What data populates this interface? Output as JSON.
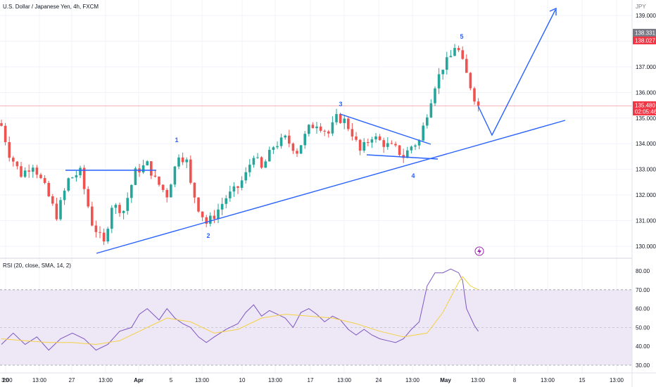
{
  "header": {
    "symbol_title": "U.S. Dollar / Japanese Yen, 4h, FXCM"
  },
  "price_axis": {
    "currency": "JPY",
    "ticks": [
      "139.000",
      "138.000",
      "137.000",
      "136.000",
      "135.000",
      "134.000",
      "133.000",
      "132.000",
      "131.000",
      "130.000"
    ],
    "badges": {
      "high": "138.331",
      "high_marker": "138.027",
      "last": "135.480",
      "countdown": "02:05:46"
    }
  },
  "time_axis": {
    "ticks": [
      "3:00",
      "20",
      "13:00",
      "27",
      "13:00",
      "Apr",
      "5",
      "13:00",
      "10",
      "13:00",
      "17",
      "13:00",
      "24",
      "13:00",
      "May",
      "13:00",
      "8",
      "13:00",
      "15",
      "13:00"
    ]
  },
  "wave_labels": [
    "1",
    "2",
    "3",
    "4",
    "5"
  ],
  "rsi": {
    "title": "RSI (20, close, SMA, 14, 2)",
    "ticks": [
      "80.00",
      "70.00",
      "60.00",
      "50.00",
      "40.00",
      "30.00"
    ]
  },
  "colors": {
    "up": "#26a69a",
    "down": "#ef5350",
    "drawing": "#2962ff",
    "rsi_line": "#7e57c2",
    "rsi_ma": "#f5d142",
    "rsi_band": "#ede7f6",
    "last_price": "#f23645"
  },
  "chart_data": [
    {
      "type": "candlestick",
      "title": "U.S. Dollar / Japanese Yen, 4h, FXCM",
      "ylabel": "JPY",
      "ylim": [
        129.6,
        139.3
      ],
      "x_ticks": [
        "3:00",
        "20",
        "13:00",
        "27",
        "13:00",
        "Apr",
        "5",
        "13:00",
        "10",
        "13:00",
        "17",
        "13:00",
        "24",
        "13:00",
        "May",
        "13:00",
        "8",
        "13:00",
        "15",
        "13:00"
      ],
      "last_price": 135.48,
      "session_high": 138.331,
      "annotations": [
        "1",
        "2",
        "3",
        "4",
        "5"
      ],
      "price_path": [
        [
          0,
          134.7
        ],
        [
          2,
          133.6
        ],
        [
          5,
          132.8
        ],
        [
          8,
          133.2
        ],
        [
          11,
          132.3
        ],
        [
          14,
          131.2
        ],
        [
          17,
          132.6
        ],
        [
          20,
          132.9
        ],
        [
          23,
          130.9
        ],
        [
          26,
          130.1
        ],
        [
          28,
          131.6
        ],
        [
          31,
          131.4
        ],
        [
          34,
          132.9
        ],
        [
          37,
          133.2
        ],
        [
          39,
          132.6
        ],
        [
          42,
          132.0
        ],
        [
          45,
          133.6
        ],
        [
          47,
          133.3
        ],
        [
          48,
          132.4
        ],
        [
          50,
          131.5
        ],
        [
          52,
          130.9
        ],
        [
          54,
          131.2
        ],
        [
          57,
          131.9
        ],
        [
          60,
          132.3
        ],
        [
          62,
          132.8
        ],
        [
          64,
          133.6
        ],
        [
          66,
          133.0
        ],
        [
          69,
          133.9
        ],
        [
          72,
          134.2
        ],
        [
          75,
          133.7
        ],
        [
          78,
          134.6
        ],
        [
          80,
          134.8
        ],
        [
          83,
          134.4
        ],
        [
          85,
          135.0
        ],
        [
          87,
          134.9
        ],
        [
          89,
          134.4
        ],
        [
          91,
          133.7
        ],
        [
          94,
          134.3
        ],
        [
          97,
          134.0
        ],
        [
          100,
          133.8
        ],
        [
          102,
          133.5
        ],
        [
          104,
          133.9
        ],
        [
          106,
          134.1
        ],
        [
          108,
          135.2
        ],
        [
          110,
          136.3
        ],
        [
          112,
          137.0
        ],
        [
          114,
          137.4
        ],
        [
          115,
          137.8
        ],
        [
          116,
          137.6
        ],
        [
          118,
          136.7
        ],
        [
          120,
          135.8
        ],
        [
          121,
          135.48
        ]
      ]
    },
    {
      "type": "line",
      "title": "RSI (20, close, SMA, 14, 2)",
      "ylim": [
        25,
        84
      ],
      "band": [
        30,
        70
      ],
      "midline": 50,
      "series": [
        {
          "values": [
            [
              0,
              41
            ],
            [
              3,
              47
            ],
            [
              6,
              41
            ],
            [
              9,
              45
            ],
            [
              12,
              38
            ],
            [
              15,
              44
            ],
            [
              18,
              47
            ],
            [
              21,
              44
            ],
            [
              24,
              38
            ],
            [
              27,
              41
            ],
            [
              30,
              48
            ],
            [
              33,
              50
            ],
            [
              35,
              57
            ],
            [
              37,
              60
            ],
            [
              40,
              54
            ],
            [
              42,
              60
            ],
            [
              44,
              55
            ],
            [
              46,
              52
            ],
            [
              48,
              50
            ],
            [
              50,
              45
            ],
            [
              52,
              42
            ],
            [
              54,
              45
            ],
            [
              57,
              49
            ],
            [
              60,
              52
            ],
            [
              62,
              58
            ],
            [
              64,
              62
            ],
            [
              66,
              56
            ],
            [
              68,
              59
            ],
            [
              70,
              57
            ],
            [
              72,
              55
            ],
            [
              74,
              50
            ],
            [
              76,
              58
            ],
            [
              78,
              60
            ],
            [
              80,
              57
            ],
            [
              82,
              53
            ],
            [
              84,
              56
            ],
            [
              86,
              54
            ],
            [
              88,
              49
            ],
            [
              90,
              46
            ],
            [
              92,
              49
            ],
            [
              94,
              46
            ],
            [
              96,
              44
            ],
            [
              98,
              43
            ],
            [
              100,
              42
            ],
            [
              102,
              44
            ],
            [
              104,
              49
            ],
            [
              106,
              53
            ],
            [
              108,
              72
            ],
            [
              110,
              79
            ],
            [
              112,
              79
            ],
            [
              114,
              81
            ],
            [
              116,
              79
            ],
            [
              117,
              75
            ],
            [
              118,
              60
            ],
            [
              120,
              51
            ],
            [
              121,
              48
            ]
          ]
        },
        {
          "values": [
            [
              0,
              44
            ],
            [
              6,
              43
            ],
            [
              12,
              42
            ],
            [
              18,
              42
            ],
            [
              24,
              41
            ],
            [
              30,
              43
            ],
            [
              36,
              49
            ],
            [
              42,
              55
            ],
            [
              48,
              53
            ],
            [
              54,
              47
            ],
            [
              60,
              49
            ],
            [
              66,
              55
            ],
            [
              72,
              57
            ],
            [
              78,
              56
            ],
            [
              84,
              55
            ],
            [
              90,
              52
            ],
            [
              96,
              48
            ],
            [
              102,
              45
            ],
            [
              108,
              47
            ],
            [
              112,
              58
            ],
            [
              116,
              74
            ],
            [
              117,
              77
            ],
            [
              119,
              72
            ],
            [
              121,
              70
            ]
          ]
        }
      ]
    }
  ]
}
